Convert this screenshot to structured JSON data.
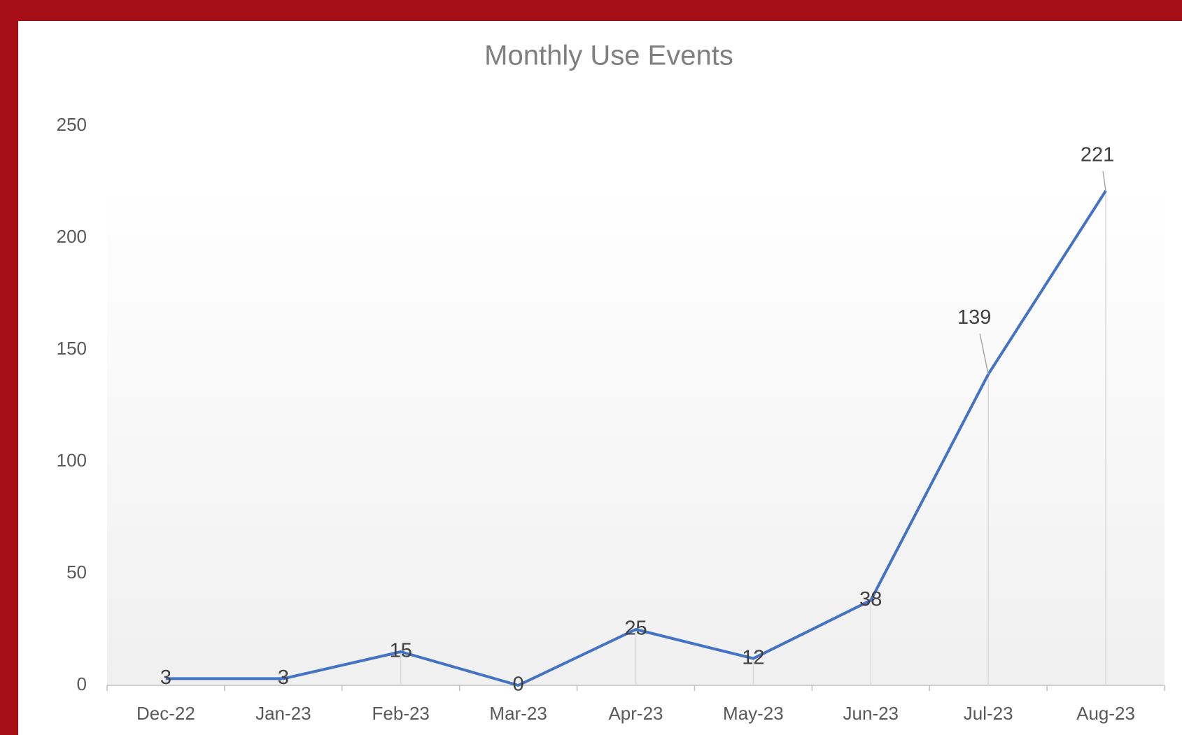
{
  "chart_data": {
    "type": "line",
    "title": "Monthly Use Events",
    "categories": [
      "Dec-22",
      "Jan-23",
      "Feb-23",
      "Mar-23",
      "Apr-23",
      "May-23",
      "Jun-23",
      "Jul-23",
      "Aug-23"
    ],
    "series": [
      {
        "name": "Monthly Use Events",
        "color": "#4472c4",
        "values": [
          3,
          3,
          15,
          0,
          25,
          12,
          38,
          139,
          221
        ]
      }
    ],
    "ylim": [
      0,
      250
    ],
    "yticks": [
      0,
      50,
      100,
      150,
      200,
      250
    ],
    "grid": false,
    "drop_lines": true,
    "data_labels": true
  }
}
